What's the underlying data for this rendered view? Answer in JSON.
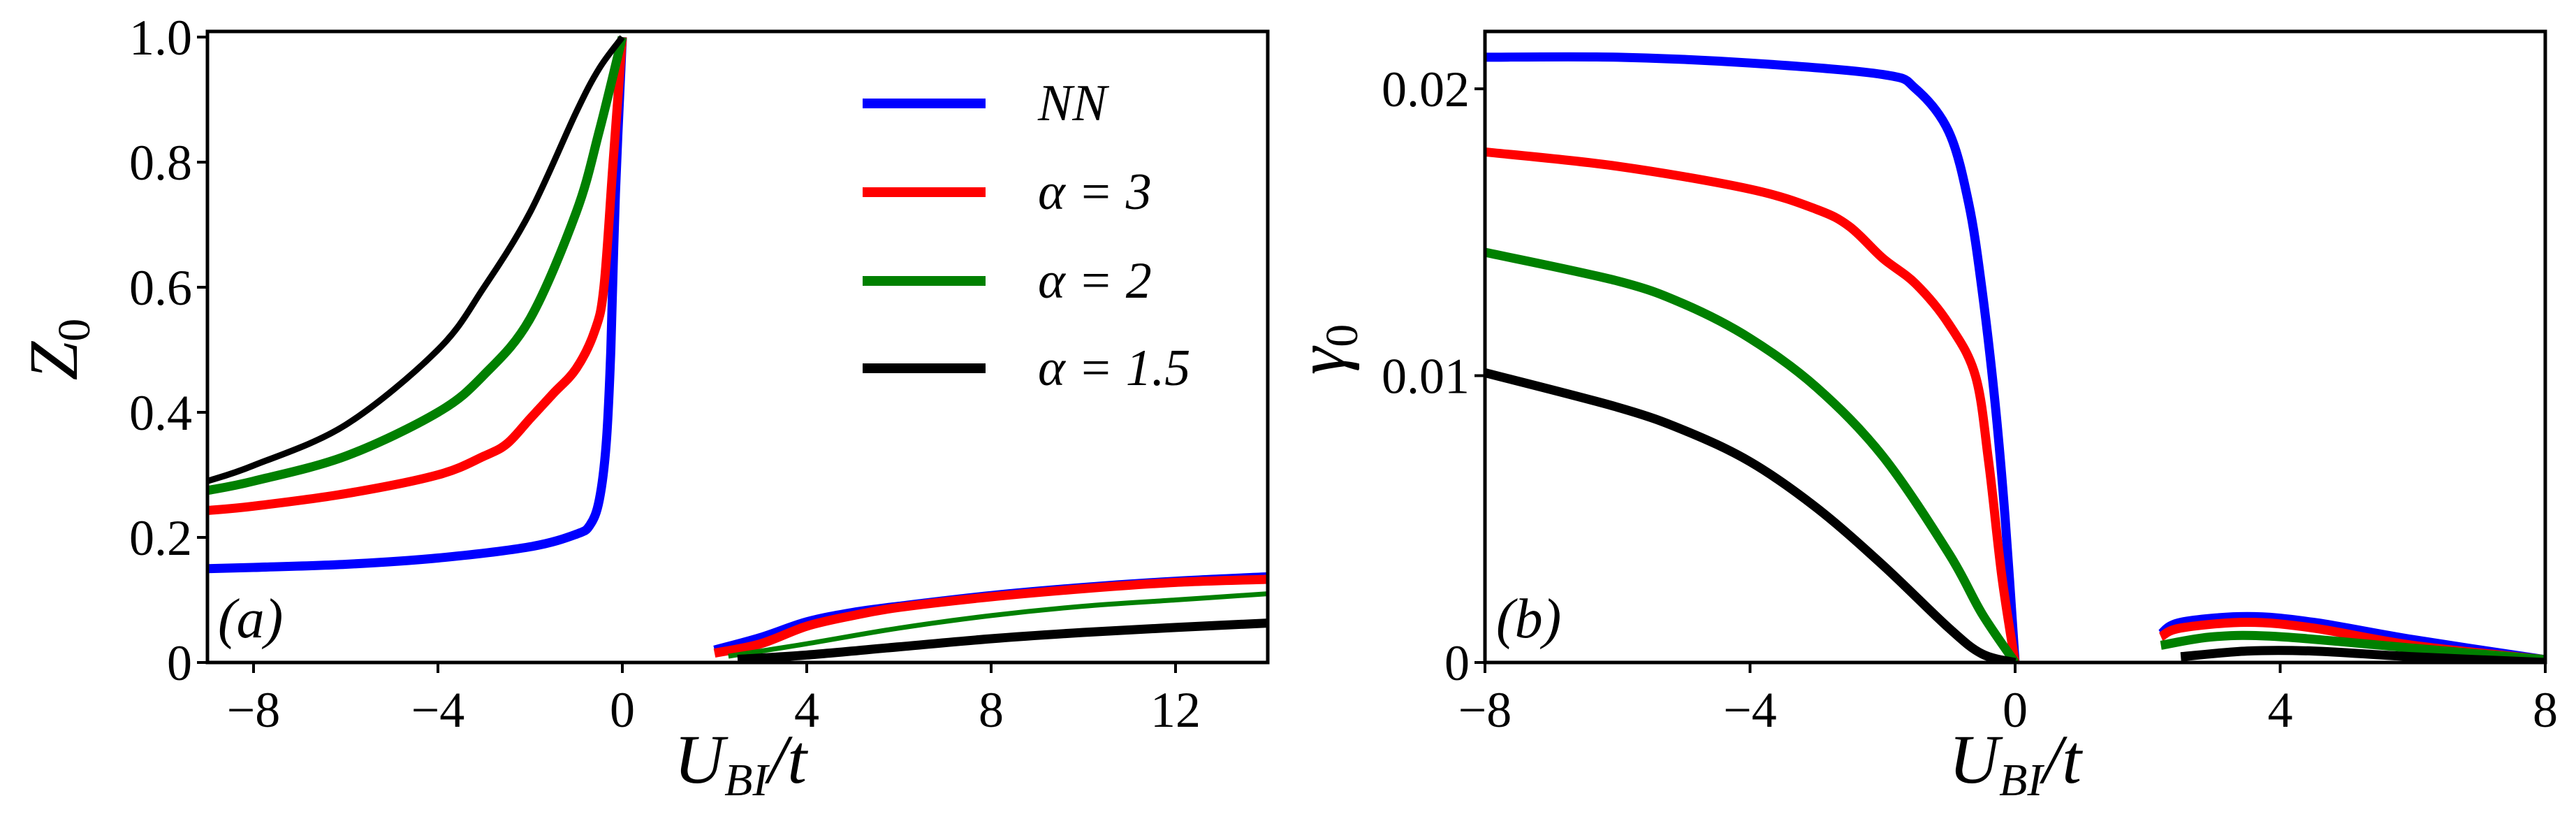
{
  "chart_data": [
    {
      "type": "line",
      "panel_label": "(a)",
      "xlabel": {
        "main": "U",
        "sub": "BI",
        "rest": "/t"
      },
      "ylabel": {
        "main": "Z",
        "sub": "0"
      },
      "xlim": [
        -9,
        14
      ],
      "ylim": [
        0,
        1.009
      ],
      "xticks": [
        -8,
        -4,
        0,
        4,
        8,
        12
      ],
      "xtick_labels": [
        "−8",
        "−4",
        "0",
        "4",
        "8",
        "12"
      ],
      "yticks": [
        0,
        0.2,
        0.4,
        0.6,
        0.8,
        1.0
      ],
      "ytick_labels": [
        "0",
        "0.2",
        "0.4",
        "0.6",
        "0.8",
        "1.0"
      ],
      "grid": false,
      "legend": {
        "placement": "top-right",
        "entries": [
          "NN",
          "α = 3",
          "α = 2",
          "α = 1.5"
        ]
      },
      "series": [
        {
          "name": "NN",
          "color": "#0000ff",
          "segments": [
            [
              [
                -9,
                0.15
              ],
              [
                -8,
                0.152
              ],
              [
                -6,
                0.157
              ],
              [
                -4,
                0.167
              ],
              [
                -2,
                0.185
              ],
              [
                -1,
                0.205
              ],
              [
                -0.7,
                0.22
              ],
              [
                -0.5,
                0.26
              ],
              [
                -0.35,
                0.35
              ],
              [
                -0.25,
                0.5
              ],
              [
                -0.15,
                0.75
              ],
              [
                0,
                1.0
              ]
            ],
            [
              [
                2,
                0.02
              ],
              [
                3,
                0.04
              ],
              [
                4,
                0.065
              ],
              [
                5,
                0.08
              ],
              [
                6,
                0.09
              ],
              [
                8,
                0.107
              ],
              [
                10,
                0.12
              ],
              [
                12,
                0.13
              ],
              [
                14,
                0.137
              ]
            ]
          ]
        },
        {
          "name": "α = 3",
          "color": "#ff0000",
          "segments": [
            [
              [
                -9,
                0.243
              ],
              [
                -8,
                0.25
              ],
              [
                -6,
                0.27
              ],
              [
                -4,
                0.3
              ],
              [
                -3,
                0.33
              ],
              [
                -2.5,
                0.35
              ],
              [
                -2,
                0.39
              ],
              [
                -1.5,
                0.43
              ],
              [
                -1,
                0.47
              ],
              [
                -0.6,
                0.53
              ],
              [
                -0.4,
                0.6
              ],
              [
                -0.2,
                0.8
              ],
              [
                0,
                1.0
              ]
            ],
            [
              [
                2,
                0.015
              ],
              [
                3,
                0.03
              ],
              [
                4,
                0.058
              ],
              [
                5,
                0.075
              ],
              [
                6,
                0.088
              ],
              [
                8,
                0.105
              ],
              [
                10,
                0.118
              ],
              [
                12,
                0.128
              ],
              [
                14,
                0.133
              ]
            ]
          ]
        },
        {
          "name": "α = 2",
          "color": "#008000",
          "segments": [
            [
              [
                -9,
                0.275
              ],
              [
                -8,
                0.29
              ],
              [
                -6,
                0.33
              ],
              [
                -4,
                0.4
              ],
              [
                -3,
                0.46
              ],
              [
                -2,
                0.55
              ],
              [
                -1,
                0.72
              ],
              [
                -0.5,
                0.85
              ],
              [
                0,
                1.0
              ]
            ],
            [
              [
                2.3,
                0.01
              ],
              [
                4,
                0.03
              ],
              [
                6,
                0.055
              ],
              [
                8,
                0.075
              ],
              [
                10,
                0.09
              ],
              [
                12,
                0.1
              ],
              [
                14,
                0.11
              ]
            ]
          ]
        },
        {
          "name": "α = 1.5",
          "color": "#000000",
          "segments": [
            [
              [
                -9,
                0.29
              ],
              [
                -8,
                0.315
              ],
              [
                -6,
                0.38
              ],
              [
                -4,
                0.5
              ],
              [
                -3,
                0.6
              ],
              [
                -2,
                0.72
              ],
              [
                -1,
                0.88
              ],
              [
                -0.5,
                0.95
              ],
              [
                0,
                1.0
              ]
            ],
            [
              [
                2.5,
                0.005
              ],
              [
                4,
                0.012
              ],
              [
                6,
                0.025
              ],
              [
                8,
                0.038
              ],
              [
                10,
                0.048
              ],
              [
                12,
                0.056
              ],
              [
                14,
                0.063
              ]
            ]
          ]
        }
      ]
    },
    {
      "type": "line",
      "panel_label": "(b)",
      "xlabel": {
        "main": "U",
        "sub": "BI",
        "rest": "/t"
      },
      "ylabel": {
        "main": "γ",
        "sub": "0"
      },
      "xlim": [
        -8,
        8
      ],
      "ylim": [
        0,
        0.022
      ],
      "xticks": [
        -8,
        -4,
        0,
        4,
        8
      ],
      "xtick_labels": [
        "−8",
        "−4",
        "0",
        "4",
        "8"
      ],
      "yticks": [
        0,
        0.01,
        0.02
      ],
      "ytick_labels": [
        "0",
        "0.01",
        "0.02"
      ],
      "grid": false,
      "series": [
        {
          "name": "NN",
          "color": "#0000ff",
          "segments": [
            [
              [
                -8,
                0.0211
              ],
              [
                -6,
                0.0211
              ],
              [
                -4,
                0.0209
              ],
              [
                -2,
                0.0205
              ],
              [
                -1.5,
                0.02
              ],
              [
                -1,
                0.0185
              ],
              [
                -0.7,
                0.016
              ],
              [
                -0.5,
                0.013
              ],
              [
                -0.3,
                0.009
              ],
              [
                -0.15,
                0.005
              ],
              [
                0,
                0
              ]
            ],
            [
              [
                2.2,
                0.001
              ],
              [
                2.5,
                0.0014
              ],
              [
                3.5,
                0.0016
              ],
              [
                4.5,
                0.0014
              ],
              [
                6,
                0.0008
              ],
              [
                8,
                0.0001
              ]
            ]
          ]
        },
        {
          "name": "α = 3",
          "color": "#ff0000",
          "segments": [
            [
              [
                -8,
                0.0178
              ],
              [
                -6,
                0.0173
              ],
              [
                -4,
                0.0165
              ],
              [
                -3,
                0.0158
              ],
              [
                -2.5,
                0.0152
              ],
              [
                -2,
                0.0141
              ],
              [
                -1.5,
                0.0132
              ],
              [
                -1,
                0.0118
              ],
              [
                -0.6,
                0.01
              ],
              [
                -0.4,
                0.007
              ],
              [
                -0.2,
                0.003
              ],
              [
                0,
                0
              ]
            ],
            [
              [
                2.2,
                0.0009
              ],
              [
                2.5,
                0.0012
              ],
              [
                3.5,
                0.0014
              ],
              [
                4.5,
                0.0012
              ],
              [
                6,
                0.0006
              ],
              [
                8,
                0.0001
              ]
            ]
          ]
        },
        {
          "name": "α = 2",
          "color": "#008000",
          "segments": [
            [
              [
                -8,
                0.0143
              ],
              [
                -6,
                0.0133
              ],
              [
                -5,
                0.0125
              ],
              [
                -4,
                0.0113
              ],
              [
                -3,
                0.0096
              ],
              [
                -2,
                0.0072
              ],
              [
                -1,
                0.0038
              ],
              [
                -0.5,
                0.0017
              ],
              [
                0,
                0
              ]
            ],
            [
              [
                2.2,
                0.0006
              ],
              [
                3,
                0.0009
              ],
              [
                4,
                0.0009
              ],
              [
                6,
                0.0005
              ],
              [
                8,
                0.0001
              ]
            ]
          ]
        },
        {
          "name": "α = 1.5",
          "color": "#000000",
          "segments": [
            [
              [
                -8,
                0.0101
              ],
              [
                -6,
                0.0089
              ],
              [
                -5,
                0.0081
              ],
              [
                -4,
                0.007
              ],
              [
                -3,
                0.0054
              ],
              [
                -2,
                0.0034
              ],
              [
                -1,
                0.0012
              ],
              [
                -0.5,
                0.0003
              ],
              [
                0,
                0
              ]
            ],
            [
              [
                2.5,
                0.0002
              ],
              [
                3.5,
                0.0004
              ],
              [
                4.5,
                0.0004
              ],
              [
                6,
                0.0002
              ],
              [
                8,
                0
              ]
            ]
          ]
        }
      ]
    }
  ]
}
